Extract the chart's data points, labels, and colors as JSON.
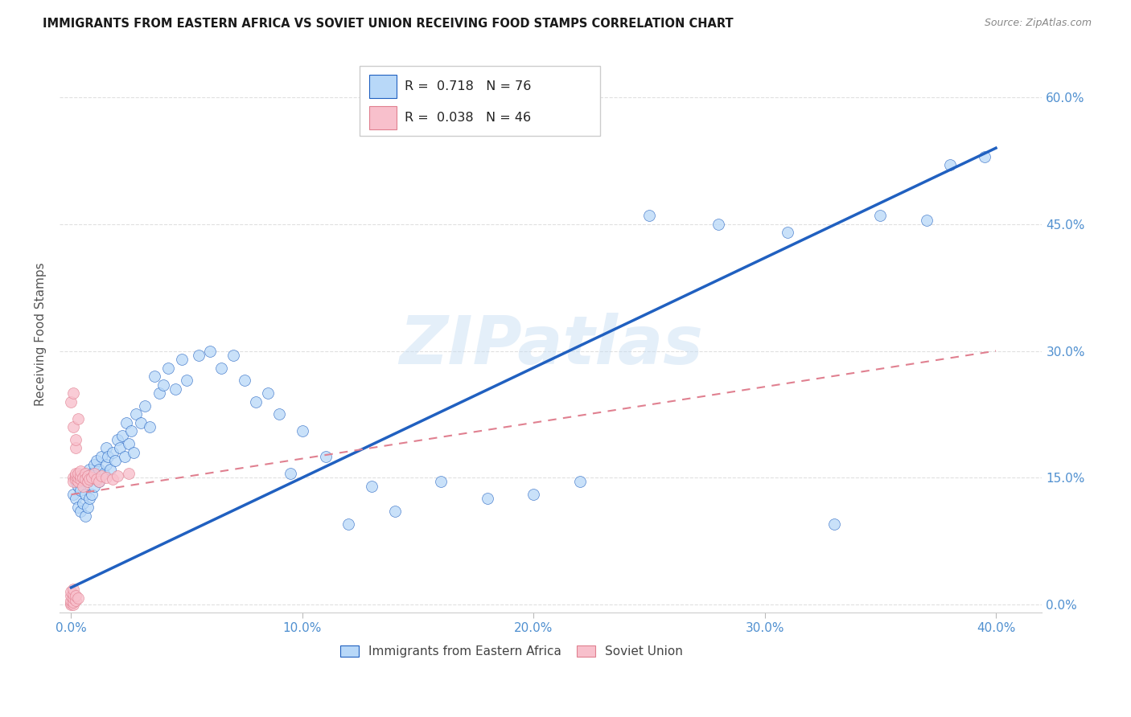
{
  "title": "IMMIGRANTS FROM EASTERN AFRICA VS SOVIET UNION RECEIVING FOOD STAMPS CORRELATION CHART",
  "source": "Source: ZipAtlas.com",
  "ylabel": "Receiving Food Stamps",
  "xlim": [
    -0.005,
    0.42
  ],
  "ylim": [
    -0.01,
    0.65
  ],
  "xticks": [
    0.0,
    0.1,
    0.2,
    0.3,
    0.4
  ],
  "xtick_labels": [
    "0.0%",
    "10.0%",
    "20.0%",
    "30.0%",
    "40.0%"
  ],
  "yticks": [
    0.0,
    0.15,
    0.3,
    0.45,
    0.6
  ],
  "ytick_labels": [
    "0.0%",
    "15.0%",
    "30.0%",
    "45.0%",
    "60.0%"
  ],
  "R_blue": 0.718,
  "N_blue": 76,
  "R_pink": 0.038,
  "N_pink": 46,
  "blue_fill": "#B8D8F8",
  "pink_fill": "#F8C0CC",
  "line_blue": "#2060C0",
  "line_pink": "#E08090",
  "bg": "#FFFFFF",
  "axis_tick_color": "#5090D0",
  "grid_color": "#DDDDDD",
  "watermark": "ZIPatlas",
  "blue_x": [
    0.001,
    0.002,
    0.002,
    0.003,
    0.003,
    0.004,
    0.004,
    0.005,
    0.005,
    0.006,
    0.006,
    0.007,
    0.007,
    0.008,
    0.008,
    0.009,
    0.009,
    0.01,
    0.01,
    0.011,
    0.011,
    0.012,
    0.012,
    0.013,
    0.014,
    0.015,
    0.015,
    0.016,
    0.017,
    0.018,
    0.019,
    0.02,
    0.021,
    0.022,
    0.023,
    0.024,
    0.025,
    0.026,
    0.027,
    0.028,
    0.03,
    0.032,
    0.034,
    0.036,
    0.038,
    0.04,
    0.042,
    0.045,
    0.048,
    0.05,
    0.055,
    0.06,
    0.065,
    0.07,
    0.075,
    0.08,
    0.085,
    0.09,
    0.095,
    0.1,
    0.11,
    0.12,
    0.13,
    0.14,
    0.16,
    0.18,
    0.2,
    0.22,
    0.25,
    0.28,
    0.31,
    0.33,
    0.35,
    0.37,
    0.38,
    0.395
  ],
  "blue_y": [
    0.13,
    0.125,
    0.145,
    0.115,
    0.14,
    0.11,
    0.135,
    0.12,
    0.15,
    0.105,
    0.13,
    0.115,
    0.145,
    0.125,
    0.16,
    0.13,
    0.155,
    0.14,
    0.165,
    0.15,
    0.17,
    0.145,
    0.16,
    0.175,
    0.155,
    0.165,
    0.185,
    0.175,
    0.16,
    0.18,
    0.17,
    0.195,
    0.185,
    0.2,
    0.175,
    0.215,
    0.19,
    0.205,
    0.18,
    0.225,
    0.215,
    0.235,
    0.21,
    0.27,
    0.25,
    0.26,
    0.28,
    0.255,
    0.29,
    0.265,
    0.295,
    0.3,
    0.28,
    0.295,
    0.265,
    0.24,
    0.25,
    0.225,
    0.155,
    0.205,
    0.175,
    0.095,
    0.14,
    0.11,
    0.145,
    0.125,
    0.13,
    0.145,
    0.46,
    0.45,
    0.44,
    0.095,
    0.46,
    0.455,
    0.52,
    0.53
  ],
  "pink_x": [
    0.0,
    0.0,
    0.0,
    0.0,
    0.0,
    0.001,
    0.001,
    0.001,
    0.001,
    0.001,
    0.001,
    0.001,
    0.002,
    0.002,
    0.002,
    0.002,
    0.002,
    0.003,
    0.003,
    0.003,
    0.003,
    0.004,
    0.004,
    0.004,
    0.005,
    0.005,
    0.006,
    0.006,
    0.007,
    0.007,
    0.008,
    0.009,
    0.01,
    0.011,
    0.012,
    0.013,
    0.015,
    0.018,
    0.02,
    0.025,
    0.0,
    0.001,
    0.001,
    0.002,
    0.002,
    0.003
  ],
  "pink_y": [
    0.0,
    0.002,
    0.005,
    0.01,
    0.015,
    0.0,
    0.003,
    0.008,
    0.012,
    0.018,
    0.15,
    0.145,
    0.005,
    0.01,
    0.148,
    0.152,
    0.155,
    0.008,
    0.145,
    0.15,
    0.155,
    0.148,
    0.152,
    0.158,
    0.14,
    0.15,
    0.155,
    0.148,
    0.145,
    0.152,
    0.148,
    0.15,
    0.155,
    0.148,
    0.145,
    0.152,
    0.15,
    0.148,
    0.152,
    0.155,
    0.24,
    0.21,
    0.25,
    0.185,
    0.195,
    0.22
  ],
  "blue_line_x": [
    0.0,
    0.4
  ],
  "blue_line_y": [
    0.02,
    0.54
  ],
  "pink_line_x": [
    0.0,
    0.4
  ],
  "pink_line_y": [
    0.13,
    0.3
  ]
}
